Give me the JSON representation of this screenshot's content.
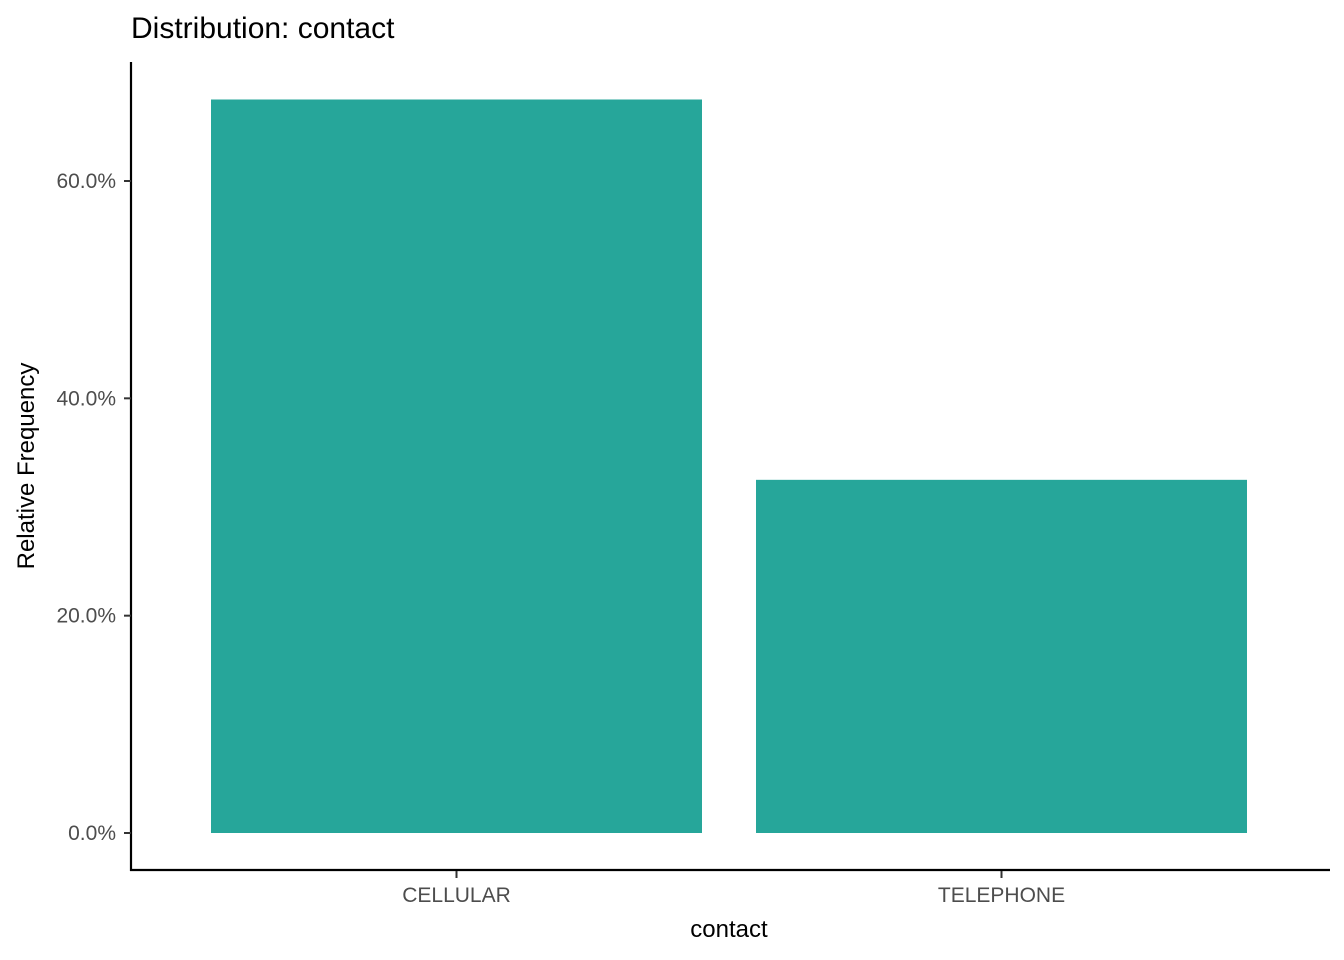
{
  "chart_data": {
    "type": "bar",
    "title": "Distribution: contact",
    "xlabel": "contact",
    "ylabel": "Relative Frequency",
    "categories": [
      "CELLULAR",
      "TELEPHONE"
    ],
    "values": [
      0.675,
      0.325
    ],
    "ylim": [
      0,
      0.7
    ],
    "yticks": [
      0,
      0.2,
      0.4,
      0.6
    ],
    "ytick_labels": [
      "0.0%",
      "20.0%",
      "40.0%",
      "60.0%"
    ],
    "bar_color": "#26A69A",
    "grid": false,
    "legend": "none"
  }
}
